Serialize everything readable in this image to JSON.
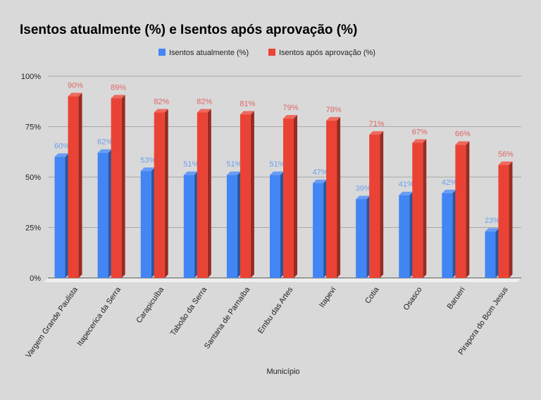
{
  "chart_data": {
    "type": "bar",
    "title": "Isentos atualmente (%) e Isentos após aprovação (%)",
    "xlabel": "Município",
    "ylabel": "",
    "ylim": [
      0,
      100
    ],
    "yticks": [
      "0%",
      "25%",
      "50%",
      "75%",
      "100%"
    ],
    "ytick_values": [
      0,
      25,
      50,
      75,
      100
    ],
    "grid": true,
    "legend_position": "top",
    "style": "3d",
    "categories": [
      "Vargem Grande Paulista",
      "Itapecerica da Serra",
      "Carapicuíba",
      "Taboão da Serra",
      "Santana de Parnaíba",
      "Embu das Artes",
      "Itapevi",
      "Cotia",
      "Osasco",
      "Barueri",
      "Pirapora do Bom Jesus"
    ],
    "series": [
      {
        "name": "Isentos atualmente (%)",
        "color": "#4285f4",
        "label_color": "#6d9eeb",
        "values": [
          60,
          62,
          53,
          51,
          51,
          51,
          47,
          39,
          41,
          42,
          23
        ],
        "labels": [
          "60%",
          "62%",
          "53%",
          "51%",
          "51%",
          "51%",
          "47%",
          "39%",
          "41%",
          "42%",
          "23%"
        ]
      },
      {
        "name": "Isentos após aprovação (%)",
        "color": "#ea4335",
        "label_color": "#e06666",
        "values": [
          90,
          89,
          82,
          82,
          81,
          79,
          78,
          71,
          67,
          66,
          56
        ],
        "labels": [
          "90%",
          "89%",
          "82%",
          "82%",
          "81%",
          "79%",
          "78%",
          "71%",
          "67%",
          "66%",
          "56%"
        ]
      }
    ]
  }
}
